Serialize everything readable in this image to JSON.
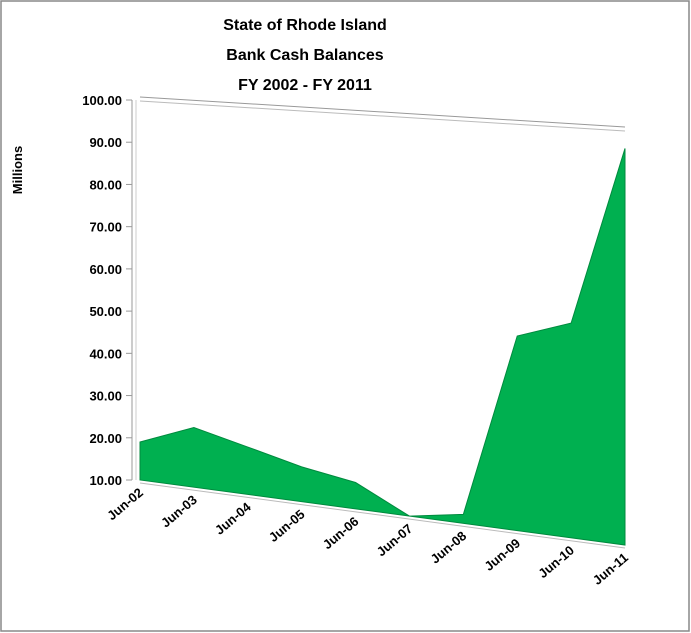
{
  "chart_data": {
    "type": "area",
    "title": [
      "State of Rhode Island",
      "Bank Cash Balances",
      "FY 2002 - FY 2011"
    ],
    "y_label": "Millions",
    "categories": [
      "Jun-02",
      "Jun-03",
      "Jun-04",
      "Jun-05",
      "Jun-06",
      "Jun-07",
      "Jun-08",
      "Jun-09",
      "Jun-10",
      "Jun-11"
    ],
    "values": [
      19,
      24,
      21,
      18,
      16,
      10,
      12,
      53,
      57,
      96
    ],
    "color": "#00b050",
    "ylim": [
      10,
      100
    ],
    "yticks": [
      {
        "value": 10,
        "label": "10.00"
      },
      {
        "value": 20,
        "label": "20.00"
      },
      {
        "value": 30,
        "label": "30.00"
      },
      {
        "value": 40,
        "label": "40.00"
      },
      {
        "value": 50,
        "label": "50.00"
      },
      {
        "value": 60,
        "label": "60.00"
      },
      {
        "value": 70,
        "label": "70.00"
      },
      {
        "value": 80,
        "label": "80.00"
      },
      {
        "value": 90,
        "label": "90.00"
      },
      {
        "value": 100,
        "label": "100.00"
      }
    ]
  }
}
